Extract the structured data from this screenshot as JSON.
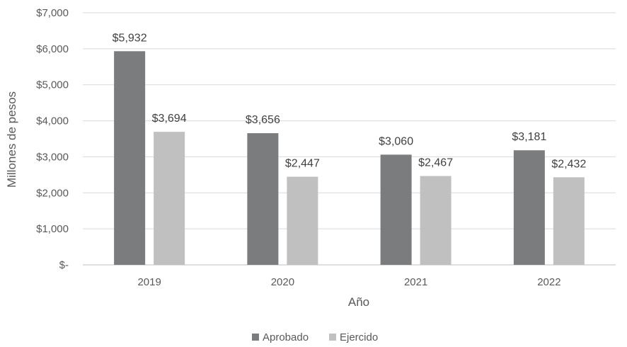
{
  "chart_data": {
    "type": "bar",
    "categories": [
      "2019",
      "2020",
      "2021",
      "2022"
    ],
    "series": [
      {
        "name": "Aprobado",
        "color": "#7a7c7e",
        "values": [
          5932,
          3656,
          3060,
          3181
        ],
        "labels": [
          "$5,932",
          "$3,656",
          "$3,060",
          "$3,181"
        ]
      },
      {
        "name": "Ejercido",
        "color": "#c0c0c0",
        "values": [
          3694,
          2447,
          2467,
          2432
        ],
        "labels": [
          "$3,694",
          "$2,447",
          "$2,467",
          "$2,432"
        ]
      }
    ],
    "xlabel": "Año",
    "ylabel": "Millones de pesos",
    "ylim": [
      0,
      7000
    ],
    "yticks": [
      0,
      1000,
      2000,
      3000,
      4000,
      5000,
      6000,
      7000
    ],
    "ytick_labels": [
      "$-",
      "$1,000",
      "$2,000",
      "$3,000",
      "$4,000",
      "$5,000",
      "$6,000",
      "$7,000"
    ],
    "grid": true,
    "grid_color": "#d9d9d9",
    "legend_position": "bottom"
  }
}
